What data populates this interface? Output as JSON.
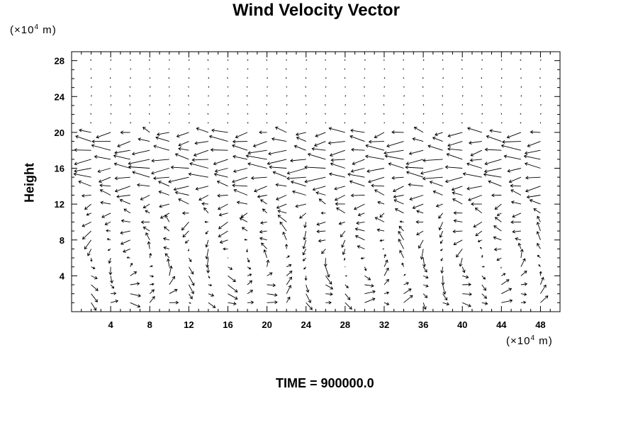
{
  "title": "Wind Velocity Vector",
  "footer_text": "TIME = 900000.0",
  "chart_data": {
    "type": "quiver",
    "title": "Wind Velocity Vector",
    "ylabel": "Height",
    "xlabel": "",
    "x_unit_base": "×10",
    "x_unit_exp": "4",
    "x_unit_suffix": " m",
    "y_unit_base": "×10",
    "y_unit_exp": "4",
    "y_unit_suffix": " m",
    "xlim": [
      0,
      50
    ],
    "ylim": [
      0,
      29
    ],
    "x_ticks": [
      "4",
      "8",
      "12",
      "16",
      "20",
      "24",
      "28",
      "32",
      "36",
      "40",
      "44",
      "48"
    ],
    "y_ticks": [
      "4",
      "8",
      "12",
      "16",
      "20",
      "24",
      "28"
    ],
    "grid": false,
    "vector_color": "#000000",
    "x_spacing": 2,
    "y_spacing": 1,
    "cells": [
      {
        "x_range": [
          0,
          12
        ],
        "updraft_x": 12,
        "center_y": 5.5
      },
      {
        "x_range": [
          12,
          24
        ],
        "updraft_x": 24,
        "center_y": 6
      },
      {
        "x_range": [
          24,
          36
        ],
        "updraft_x": 36,
        "center_y": 5.5
      },
      {
        "x_range": [
          36,
          50
        ],
        "updraft_x": 50,
        "center_y": 5.5
      }
    ],
    "upper_jet_heights": [
      15,
      16,
      17,
      18,
      19,
      20
    ],
    "time": "900000.0"
  }
}
